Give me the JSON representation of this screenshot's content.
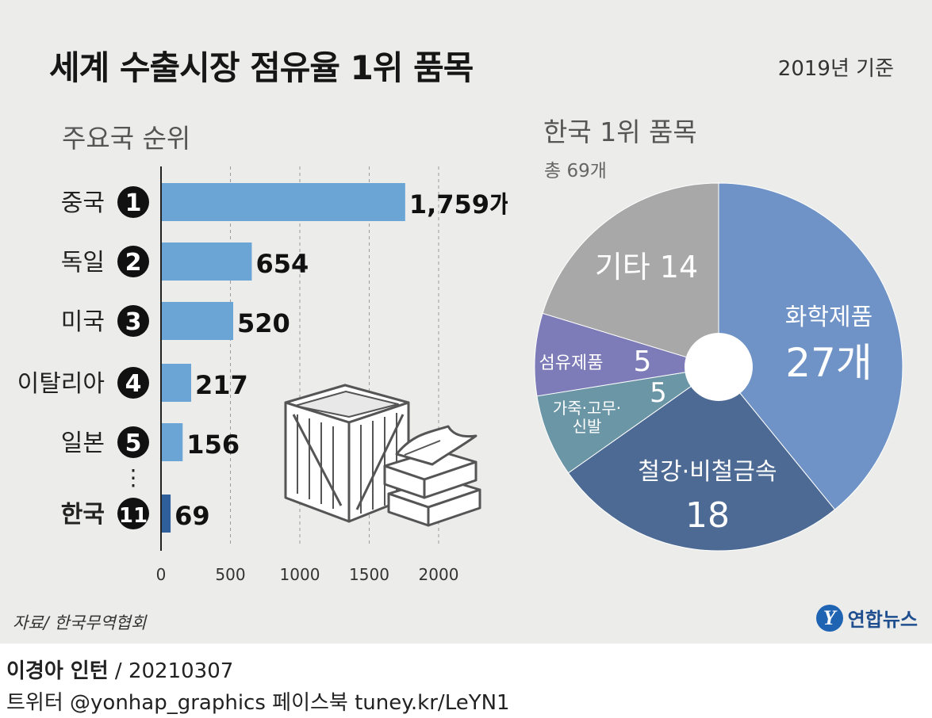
{
  "header": {
    "title": "세계 수출시장 점유율 1위 품목",
    "basis": "2019년 기준"
  },
  "bar_section": {
    "heading": "주요국 순위"
  },
  "pie_section": {
    "heading": "한국 1위 품목",
    "total": "총 69개"
  },
  "ellipsis": "⋮",
  "footer": {
    "source": "자료/ 한국무역협회",
    "logo_text": "연합뉴스",
    "logo_mark": "Y",
    "credit_name": "이경아 인턴",
    "credit_date": " / 20210307",
    "social": "트위터 @yonhap_graphics  페이스북 tuney.kr/LeYN1"
  },
  "colors": {
    "bar": "#6aa5d6",
    "bar_highlight": "#2f5f9a",
    "rank_badge": "#111111",
    "pie_chem": "#6f93c6",
    "pie_steel": "#4c6a93",
    "pie_leather": "#6b96a6",
    "pie_fiber": "#7d7cb8",
    "pie_other": "#a8a8a8"
  },
  "chart_data": [
    {
      "type": "bar",
      "orientation": "horizontal",
      "categories": [
        "중국",
        "독일",
        "미국",
        "이탈리아",
        "일본",
        "한국"
      ],
      "ranks": [
        "1",
        "2",
        "3",
        "4",
        "5",
        "11"
      ],
      "values": [
        1759,
        654,
        520,
        217,
        156,
        69
      ],
      "value_labels": [
        "1,759개",
        "654",
        "520",
        "217",
        "156",
        "69"
      ],
      "highlight": "한국",
      "xlim": [
        0,
        2000
      ],
      "xticks": [
        0,
        500,
        1000,
        1500,
        2000
      ],
      "xtick_labels": [
        "0",
        "500",
        "1000",
        "1500",
        "2000"
      ],
      "grid": "vertical dashed"
    },
    {
      "type": "pie",
      "style": "donut",
      "total": 69,
      "slices": [
        {
          "label": "화학제품",
          "value": 27,
          "value_label": "27개"
        },
        {
          "label": "철강·비철금속",
          "value": 18,
          "value_label": "18"
        },
        {
          "label": "가죽·고무·신발",
          "value": 5,
          "value_label": "5"
        },
        {
          "label": "섬유제품",
          "value": 5,
          "value_label": "5"
        },
        {
          "label": "기타",
          "value": 14,
          "value_label": "14"
        }
      ]
    }
  ]
}
